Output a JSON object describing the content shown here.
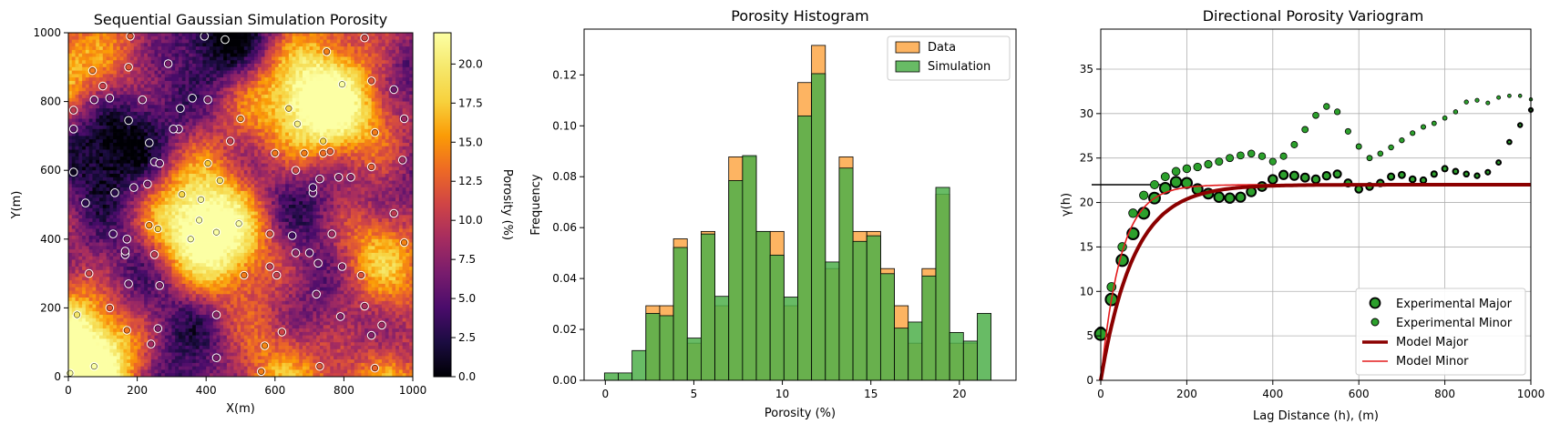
{
  "chart_data": [
    {
      "type": "heatmap",
      "title": "Sequential Gaussian Simulation Porosity",
      "xlabel": "X(m)",
      "ylabel": "Y(m)",
      "xlim": [
        0,
        1000
      ],
      "ylim": [
        0,
        1000
      ],
      "x_ticks": [
        0,
        200,
        400,
        600,
        800,
        1000
      ],
      "y_ticks": [
        0,
        200,
        400,
        600,
        800,
        1000
      ],
      "colormap": "inferno",
      "colorbar": {
        "label": "Porosity (%)",
        "range": [
          0,
          22
        ],
        "ticks": [
          "0.0",
          "2.5",
          "5.0",
          "7.5",
          "10.0",
          "12.5",
          "15.0",
          "17.5",
          "20.0"
        ],
        "tick_values": [
          0,
          2.5,
          5,
          7.5,
          10,
          12.5,
          15,
          17.5,
          20
        ]
      },
      "well_points": [
        [
          5,
          10
        ],
        [
          75,
          30
        ],
        [
          25,
          180
        ],
        [
          170,
          135
        ],
        [
          240,
          95
        ],
        [
          265,
          265
        ],
        [
          175,
          270
        ],
        [
          430,
          55
        ],
        [
          560,
          15
        ],
        [
          570,
          90
        ],
        [
          430,
          180
        ],
        [
          730,
          30
        ],
        [
          790,
          175
        ],
        [
          880,
          120
        ],
        [
          910,
          150
        ],
        [
          890,
          25
        ],
        [
          60,
          300
        ],
        [
          250,
          355
        ],
        [
          165,
          355
        ],
        [
          130,
          415
        ],
        [
          170,
          400
        ],
        [
          235,
          440
        ],
        [
          260,
          430
        ],
        [
          355,
          400
        ],
        [
          430,
          420
        ],
        [
          495,
          445
        ],
        [
          510,
          295
        ],
        [
          585,
          320
        ],
        [
          605,
          295
        ],
        [
          585,
          415
        ],
        [
          650,
          410
        ],
        [
          660,
          360
        ],
        [
          700,
          360
        ],
        [
          725,
          330
        ],
        [
          765,
          415
        ],
        [
          795,
          320
        ],
        [
          720,
          240
        ],
        [
          860,
          205
        ],
        [
          850,
          295
        ],
        [
          975,
          390
        ],
        [
          945,
          475
        ],
        [
          880,
          610
        ],
        [
          970,
          630
        ],
        [
          785,
          580
        ],
        [
          730,
          575
        ],
        [
          740,
          650
        ],
        [
          760,
          655
        ],
        [
          660,
          600
        ],
        [
          710,
          535
        ],
        [
          440,
          570
        ],
        [
          405,
          620
        ],
        [
          470,
          685
        ],
        [
          330,
          530
        ],
        [
          230,
          560
        ],
        [
          190,
          550
        ],
        [
          250,
          625
        ],
        [
          235,
          680
        ],
        [
          320,
          720
        ],
        [
          325,
          780
        ],
        [
          175,
          745
        ],
        [
          135,
          535
        ],
        [
          50,
          505
        ],
        [
          15,
          595
        ],
        [
          15,
          720
        ],
        [
          15,
          775
        ],
        [
          75,
          805
        ],
        [
          70,
          890
        ],
        [
          175,
          900
        ],
        [
          215,
          805
        ],
        [
          120,
          810
        ],
        [
          100,
          845
        ],
        [
          265,
          620
        ],
        [
          380,
          455
        ],
        [
          165,
          365
        ],
        [
          395,
          990
        ],
        [
          455,
          980
        ],
        [
          640,
          780
        ],
        [
          665,
          735
        ],
        [
          750,
          945
        ],
        [
          795,
          850
        ],
        [
          880,
          860
        ],
        [
          860,
          985
        ],
        [
          945,
          835
        ],
        [
          975,
          750
        ],
        [
          360,
          810
        ],
        [
          405,
          805
        ],
        [
          305,
          720
        ],
        [
          740,
          685
        ],
        [
          820,
          580
        ],
        [
          890,
          710
        ],
        [
          685,
          650
        ],
        [
          180,
          990
        ],
        [
          385,
          515
        ],
        [
          290,
          910
        ],
        [
          600,
          650
        ],
        [
          710,
          550
        ],
        [
          500,
          750
        ],
        [
          120,
          200
        ],
        [
          260,
          140
        ],
        [
          620,
          130
        ]
      ]
    },
    {
      "type": "bar",
      "title": "Porosity Histogram",
      "xlabel": "Porosity (%)",
      "ylabel": "Frequency",
      "xlim": [
        -1.2,
        23.2
      ],
      "ylim": [
        0,
        0.138
      ],
      "x_ticks": [
        0,
        5,
        10,
        15,
        20
      ],
      "y_ticks": [
        "0.00",
        "0.02",
        "0.04",
        "0.06",
        "0.08",
        "0.10",
        "0.12"
      ],
      "y_tick_values": [
        0,
        0.02,
        0.04,
        0.06,
        0.08,
        0.1,
        0.12
      ],
      "legend_position": "top-right",
      "bin_edges": [
        -0.05,
        0.73,
        1.51,
        2.29,
        3.07,
        3.85,
        4.63,
        5.41,
        6.19,
        6.97,
        7.75,
        8.53,
        9.31,
        10.09,
        10.87,
        11.65,
        12.43,
        13.21,
        13.99,
        14.77,
        15.55,
        16.33,
        17.11,
        17.89,
        18.67,
        19.45,
        20.23,
        21.01,
        21.79,
        22.57
      ],
      "series": [
        {
          "name": "Data",
          "color": "#fdb462",
          "values": [
            0,
            0,
            0,
            0.0293,
            0.0293,
            0.0556,
            0.0146,
            0.0585,
            0.0293,
            0.0878,
            0.0878,
            0.0585,
            0.0585,
            0.0293,
            0.117,
            0.1316,
            0.0439,
            0.0878,
            0.0585,
            0.0585,
            0.0439,
            0.0293,
            0.0146,
            0.0439,
            0.0731,
            0.0146,
            0.0146,
            0,
            0
          ]
        },
        {
          "name": "Simulation",
          "color": "#4daf4a",
          "values": [
            0.0029,
            0.0029,
            0.0117,
            0.0263,
            0.0254,
            0.0522,
            0.0166,
            0.0575,
            0.033,
            0.0785,
            0.0883,
            0.0585,
            0.0492,
            0.0327,
            0.1039,
            0.1205,
            0.0465,
            0.0834,
            0.0546,
            0.0568,
            0.0419,
            0.0205,
            0.0229,
            0.041,
            0.0758,
            0.0188,
            0.0154,
            0.0263,
            0
          ]
        }
      ]
    },
    {
      "type": "scatter",
      "title": "Directional Porosity Variogram",
      "xlabel": "Lag Distance (h), (m)",
      "ylabel": "γ(h)",
      "xlim": [
        0,
        1000
      ],
      "ylim": [
        0,
        39.5
      ],
      "x_ticks": [
        0,
        200,
        400,
        600,
        800,
        1000
      ],
      "y_ticks": [
        0,
        5,
        10,
        15,
        20,
        25,
        30,
        35
      ],
      "grid": true,
      "legend_position": "bottom-right",
      "sill": 22,
      "series": [
        {
          "name": "Experimental Major",
          "marker": "circle",
          "x": [
            0,
            25,
            50,
            75,
            100,
            125,
            150,
            175,
            200,
            225,
            250,
            275,
            300,
            325,
            350,
            375,
            400,
            425,
            450,
            475,
            500,
            525,
            550,
            575,
            600,
            625,
            650,
            675,
            700,
            725,
            750,
            775,
            800,
            825,
            850,
            875,
            900,
            925,
            950,
            975,
            1000
          ],
          "y": [
            5.2,
            9.1,
            13.5,
            16.5,
            18.8,
            20.5,
            21.6,
            22.3,
            22.2,
            21.5,
            21.0,
            20.6,
            20.5,
            20.6,
            21.2,
            21.8,
            22.6,
            23.1,
            23.0,
            22.8,
            22.6,
            23.0,
            23.2,
            22.2,
            21.5,
            21.8,
            22.2,
            22.9,
            23.1,
            22.6,
            22.5,
            23.2,
            23.8,
            23.5,
            23.2,
            23.0,
            23.4,
            24.5,
            26.8,
            28.7,
            30.4
          ]
        },
        {
          "name": "Experimental Minor",
          "marker": "circle",
          "x": [
            0,
            25,
            50,
            75,
            100,
            125,
            150,
            175,
            200,
            225,
            250,
            275,
            300,
            325,
            350,
            375,
            400,
            425,
            450,
            475,
            500,
            525,
            550,
            575,
            600,
            625,
            650,
            675,
            700,
            725,
            750,
            775,
            800,
            825,
            850,
            875,
            900,
            925,
            950,
            975,
            1000
          ],
          "y": [
            5.5,
            10.5,
            15.0,
            18.8,
            20.8,
            22.0,
            22.9,
            23.5,
            23.8,
            24.0,
            24.3,
            24.6,
            25.0,
            25.3,
            25.5,
            25.2,
            24.6,
            25.2,
            26.5,
            28.2,
            29.8,
            30.8,
            30.2,
            28.0,
            26.3,
            25.0,
            25.5,
            26.2,
            27.0,
            27.8,
            28.5,
            28.9,
            29.5,
            30.2,
            31.3,
            31.5,
            31.2,
            31.8,
            32.0,
            32.0,
            31.6
          ]
        },
        {
          "name": "Model Major",
          "color": "#8b0000",
          "model": "exponential",
          "sill": 22,
          "range": 230
        },
        {
          "name": "Model Minor",
          "color": "#e41a1c",
          "model": "exponential",
          "sill": 22,
          "range": 140
        }
      ]
    }
  ]
}
